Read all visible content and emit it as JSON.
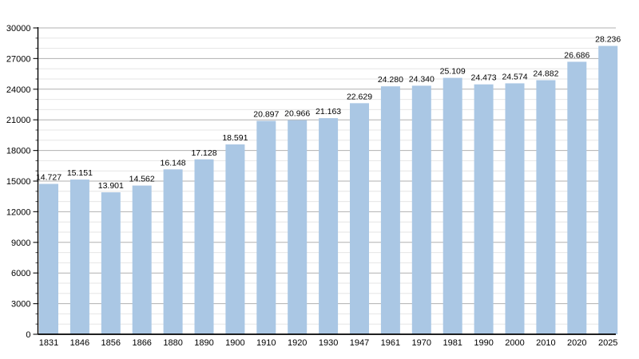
{
  "chart_data": {
    "type": "bar",
    "title": "",
    "xlabel": "",
    "ylabel": "",
    "categories": [
      "1831",
      "1846",
      "1856",
      "1866",
      "1880",
      "1890",
      "1900",
      "1910",
      "1920",
      "1930",
      "1947",
      "1961",
      "1970",
      "1981",
      "1990",
      "2000",
      "2010",
      "2020",
      "2025"
    ],
    "values": [
      14727,
      15151,
      13901,
      14562,
      16148,
      17128,
      18591,
      20897,
      20966,
      21163,
      22629,
      24280,
      24340,
      25109,
      24473,
      24574,
      24882,
      26686,
      28236
    ],
    "value_labels": [
      "14.727",
      "15.151",
      "13.901",
      "14.562",
      "16.148",
      "17.128",
      "18.591",
      "20.897",
      "20.966",
      "21.163",
      "22.629",
      "24.280",
      "24.340",
      "25.109",
      "24.473",
      "24.574",
      "24.882",
      "26.686",
      "28.236"
    ],
    "ylim": [
      0,
      30000
    ],
    "y_major_step": 3000,
    "y_minor_step": 1000,
    "y_tick_labels": [
      "0",
      "3000",
      "6000",
      "9000",
      "12000",
      "15000",
      "18000",
      "21000",
      "24000",
      "27000",
      "30000"
    ],
    "grid": "on",
    "legend": "none",
    "colors": {
      "bar": "#aac7e4",
      "grid_major": "#b0b0b0",
      "grid_minor": "#e6e6e6",
      "axis": "#000000",
      "text": "#000000",
      "background": "#ffffff"
    }
  }
}
